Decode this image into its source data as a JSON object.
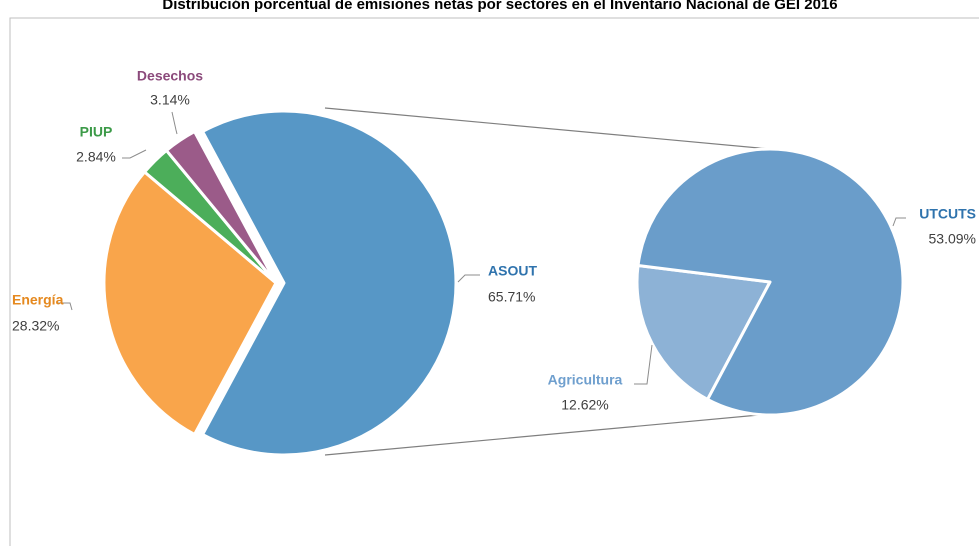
{
  "chart_data": [
    {
      "type": "pie",
      "title": "Distribución porcentual de emisiones netas por sectores en el Inventario Nacional de GEI 2016",
      "categories": [
        "ASOUT",
        "Energía",
        "PIUP",
        "Desechos"
      ],
      "values": [
        65.71,
        28.32,
        2.84,
        3.14
      ],
      "value_labels": [
        "65.71%",
        "28.32%",
        "2.84%",
        "3.14%"
      ],
      "colors": [
        "#5797c6",
        "#f9a54b",
        "#4cae5a",
        "#9b5b89"
      ],
      "label_colors": [
        "#2f73ad",
        "#e5891f",
        "#3c9a48",
        "#8b4a7b"
      ]
    },
    {
      "type": "pie",
      "categories": [
        "Agricultura",
        "UTCUTS"
      ],
      "values": [
        12.62,
        53.09
      ],
      "value_labels": [
        "12.62%",
        "53.09%"
      ],
      "colors": [
        "#8db2d6",
        "#6a9dca"
      ],
      "label_colors": [
        "#6f9fce",
        "#2f73ad"
      ]
    }
  ]
}
